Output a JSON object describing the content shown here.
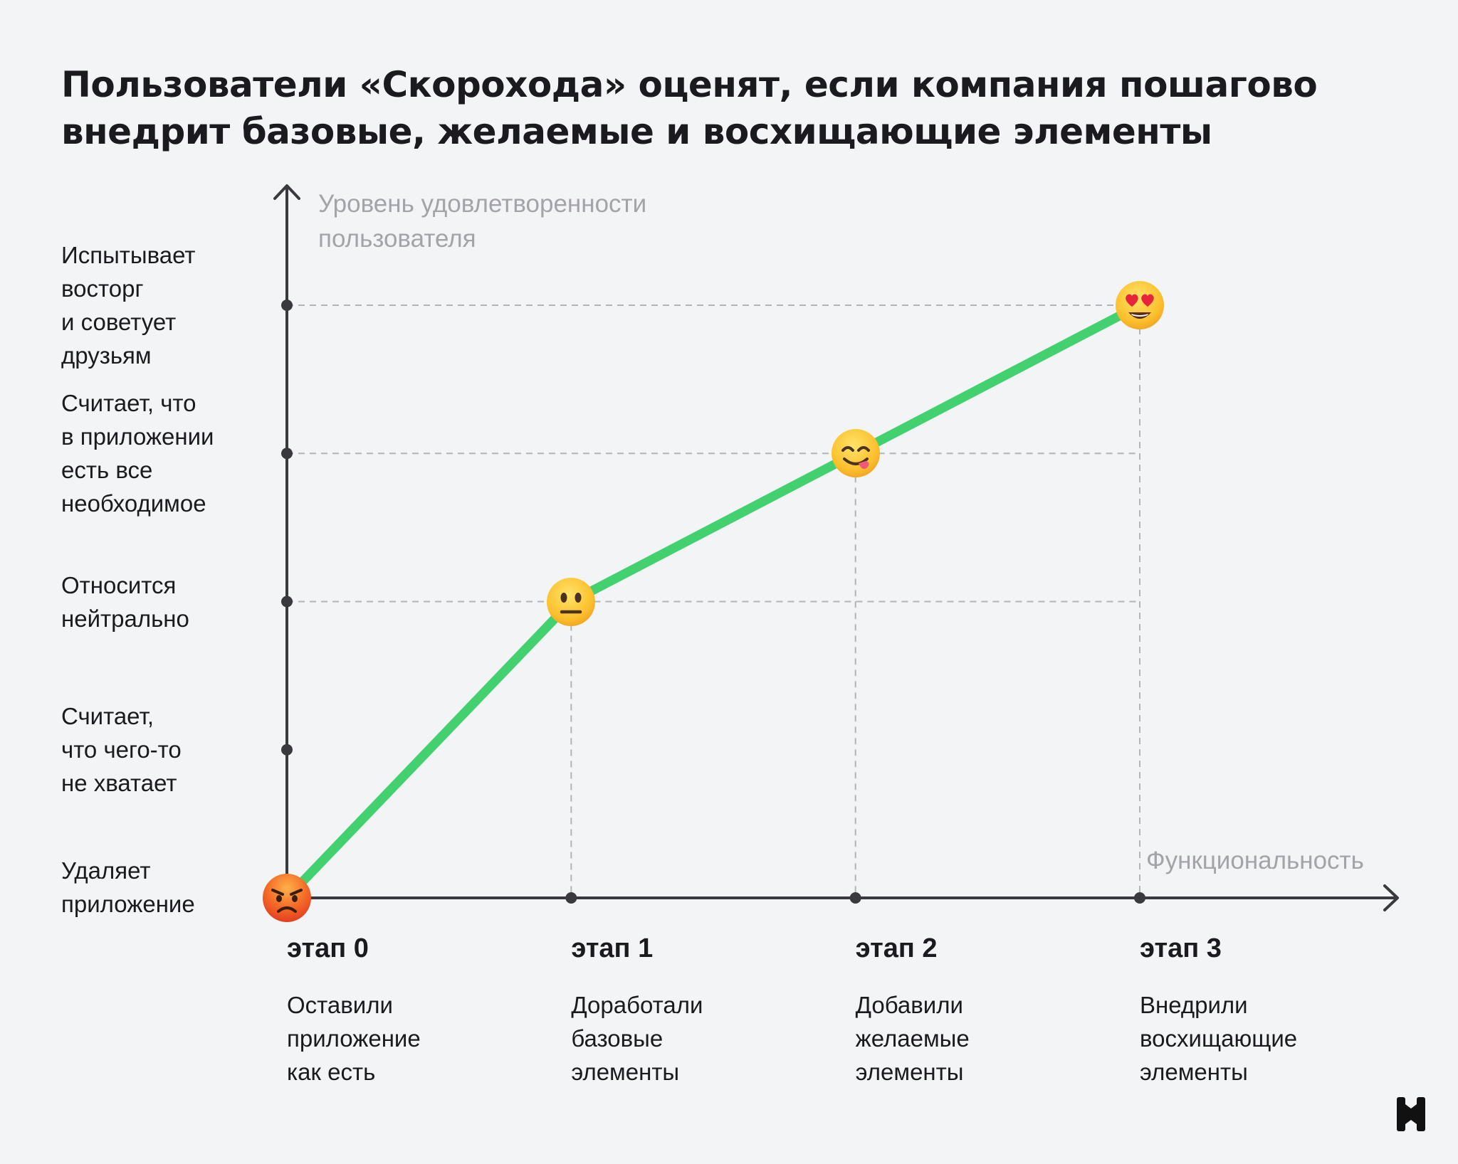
{
  "chart_data": {
    "type": "line",
    "title": [
      "Пользователи «Скорохода» оценят, если компания пошагово",
      "внедрит базовые, желаемые и восхищающие элементы"
    ],
    "ylabel": [
      "Уровень удовлетворенности",
      "пользователя"
    ],
    "xlabel": "Функциональность",
    "y_levels": [
      {
        "value": 0,
        "label": [
          "Удаляет",
          "приложение"
        ]
      },
      {
        "value": 1,
        "label": [
          "Считает,",
          "что чего-то",
          "не хватает"
        ]
      },
      {
        "value": 2,
        "label": [
          "Относится",
          "нейтрально"
        ]
      },
      {
        "value": 3,
        "label": [
          "Считает, что",
          "в приложении",
          "есть все",
          "необходимое"
        ]
      },
      {
        "value": 4,
        "label": [
          "Испытывает",
          "восторг",
          "и советует",
          "друзьям"
        ]
      }
    ],
    "stages": [
      {
        "name": "этап 0",
        "description": [
          "Оставили",
          "приложение",
          "как есть"
        ]
      },
      {
        "name": "этап 1",
        "description": [
          "Доработали",
          "базовые",
          "элементы"
        ]
      },
      {
        "name": "этап 2",
        "description": [
          "Добавили",
          "желаемые",
          "элементы"
        ]
      },
      {
        "name": "этап 3",
        "description": [
          "Внедрили",
          "восхищающие",
          "элементы"
        ]
      }
    ],
    "points": [
      {
        "x": 0,
        "y": 0,
        "icon": "angry-face-icon"
      },
      {
        "x": 1,
        "y": 2,
        "icon": "neutral-face-icon"
      },
      {
        "x": 2,
        "y": 3,
        "icon": "yum-face-icon"
      },
      {
        "x": 3,
        "y": 4,
        "icon": "heart-eyes-face-icon"
      }
    ],
    "xlim": [
      0,
      3
    ],
    "ylim": [
      0,
      4
    ],
    "grid": "dashed guide lines at data points",
    "colors": {
      "line": "#43d16f",
      "axis": "#3a3a3e",
      "guide": "#b4b4b8",
      "axis_title": "#a3a3a8",
      "background": "#f3f4f6"
    }
  },
  "brand": {
    "logo_icon": "brand-logo-icon"
  }
}
